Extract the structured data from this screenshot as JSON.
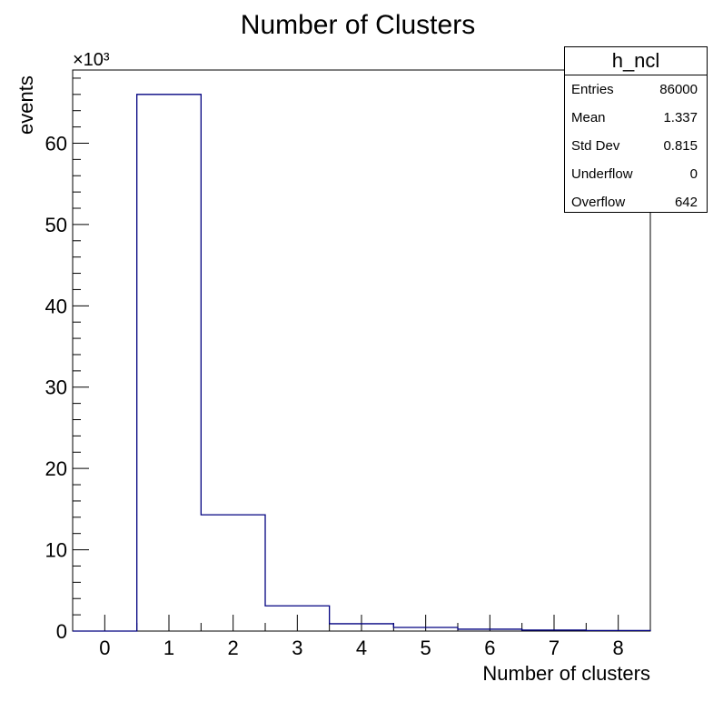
{
  "chart_data": {
    "type": "histogram",
    "title": "Number of Clusters",
    "xlabel": "Number of clusters",
    "ylabel": "events",
    "y_multiplier_label": "×10³",
    "xlim": [
      -0.5,
      8.5
    ],
    "ylim": [
      0,
      69000
    ],
    "bin_edges": [
      -0.5,
      0.5,
      1.5,
      2.5,
      3.5,
      4.5,
      5.5,
      6.5,
      7.5,
      8.5
    ],
    "bin_centers": [
      0,
      1,
      2,
      3,
      4,
      5,
      6,
      7,
      8
    ],
    "values": [
      0,
      66000,
      14300,
      3100,
      900,
      450,
      230,
      120,
      70
    ],
    "x_ticks": [
      "0",
      "1",
      "2",
      "3",
      "4",
      "5",
      "6",
      "7",
      "8"
    ],
    "y_ticks": [
      "0",
      "10",
      "20",
      "30",
      "40",
      "50",
      "60"
    ],
    "line_color": "#000080",
    "grid": false
  },
  "stats": {
    "name": "h_ncl",
    "rows": [
      {
        "label": "Entries",
        "value": "86000"
      },
      {
        "label": "Mean",
        "value": "1.337"
      },
      {
        "label": "Std Dev",
        "value": "0.815"
      },
      {
        "label": "Underflow",
        "value": "0"
      },
      {
        "label": "Overflow",
        "value": "642"
      }
    ]
  }
}
